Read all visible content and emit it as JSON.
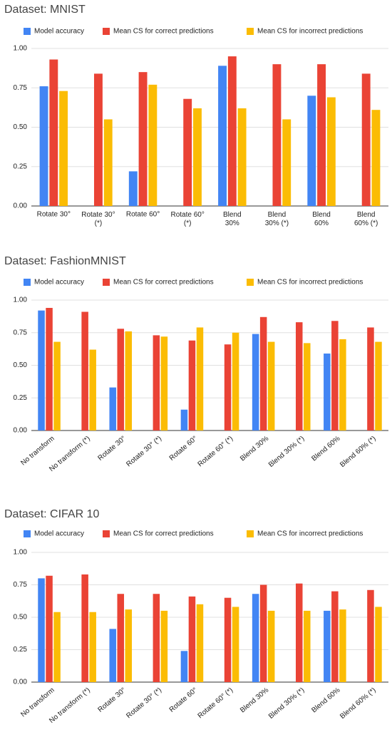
{
  "chart_data": [
    {
      "type": "bar",
      "title": "Dataset: MNIST",
      "categories": [
        "Rotate 30°",
        "Rotate 30°\n(*)",
        "Rotate 60°",
        "Rotate 60°\n(*)",
        "Blend\n30%",
        "Blend\n30% (*)",
        "Blend\n60%",
        "Blend\n60% (*)"
      ],
      "series": [
        {
          "name": "Model accuracy",
          "color": "#4285f4",
          "values": [
            0.76,
            null,
            0.22,
            null,
            0.89,
            null,
            0.7,
            null
          ]
        },
        {
          "name": "Mean CS for correct predictions",
          "color": "#ea4335",
          "values": [
            0.93,
            0.84,
            0.85,
            0.68,
            0.95,
            0.9,
            0.9,
            0.84
          ]
        },
        {
          "name": "Mean CS for incorrect predictions",
          "color": "#fbbc04",
          "values": [
            0.73,
            0.55,
            0.77,
            0.62,
            0.62,
            0.55,
            0.69,
            0.61
          ]
        }
      ],
      "ylim": [
        0,
        1
      ],
      "yticks": [
        {
          "value": 0,
          "label": "0.00"
        },
        {
          "value": 0.25,
          "label": "0.25"
        },
        {
          "value": 0.5,
          "label": "0.50"
        },
        {
          "value": 0.75,
          "label": "0.75"
        },
        {
          "value": 1,
          "label": "1.00"
        }
      ]
    },
    {
      "type": "bar",
      "title": "Dataset: FashionMNIST",
      "categories": [
        "No transform",
        "No transform (*)",
        "Rotate 30°",
        "Rotate 30° (*)",
        "Rotate 60°",
        "Rotate 60° (*)",
        "Blend 30%",
        "Blend 30% (*)",
        "Blend 60%",
        "Blend 60% (*)"
      ],
      "series": [
        {
          "name": "Model accuracy",
          "color": "#4285f4",
          "values": [
            0.92,
            null,
            0.33,
            null,
            0.16,
            null,
            0.74,
            null,
            0.59,
            null
          ]
        },
        {
          "name": "Mean CS for correct predictions",
          "color": "#ea4335",
          "values": [
            0.94,
            0.91,
            0.78,
            0.73,
            0.69,
            0.66,
            0.87,
            0.83,
            0.84,
            0.79
          ]
        },
        {
          "name": "Mean CS for incorrect predictions",
          "color": "#fbbc04",
          "values": [
            0.68,
            0.62,
            0.76,
            0.72,
            0.79,
            0.75,
            0.68,
            0.67,
            0.7,
            0.68
          ]
        }
      ],
      "ylim": [
        0,
        1
      ],
      "yticks": [
        {
          "value": 0,
          "label": "0.00"
        },
        {
          "value": 0.25,
          "label": "0.25"
        },
        {
          "value": 0.5,
          "label": "0.50"
        },
        {
          "value": 0.75,
          "label": "0.75"
        },
        {
          "value": 1,
          "label": "1.00"
        }
      ]
    },
    {
      "type": "bar",
      "title": "Dataset: CIFAR 10",
      "categories": [
        "No transform",
        "No transform (*)",
        "Rotate 30°",
        "Rotate 30° (*)",
        "Rotate 60°",
        "Rotate 60° (*)",
        "Blend 30%",
        "Blend 30% (*)",
        "Blend 60%",
        "Blend 60% (*)"
      ],
      "series": [
        {
          "name": "Model accuracy",
          "color": "#4285f4",
          "values": [
            0.8,
            null,
            0.41,
            null,
            0.24,
            null,
            0.68,
            null,
            0.55,
            null
          ]
        },
        {
          "name": "Mean CS for correct predictions",
          "color": "#ea4335",
          "values": [
            0.82,
            0.83,
            0.68,
            0.68,
            0.66,
            0.65,
            0.75,
            0.76,
            0.7,
            0.71
          ]
        },
        {
          "name": "Mean CS for incorrect predictions",
          "color": "#fbbc04",
          "values": [
            0.54,
            0.54,
            0.56,
            0.55,
            0.6,
            0.58,
            0.55,
            0.55,
            0.56,
            0.58
          ]
        }
      ],
      "ylim": [
        0,
        1
      ],
      "yticks": [
        {
          "value": 0,
          "label": "0.00"
        },
        {
          "value": 0.25,
          "label": "0.25"
        },
        {
          "value": 0.5,
          "label": "0.50"
        },
        {
          "value": 0.75,
          "label": "0.75"
        },
        {
          "value": 1,
          "label": "1.00"
        }
      ]
    }
  ]
}
